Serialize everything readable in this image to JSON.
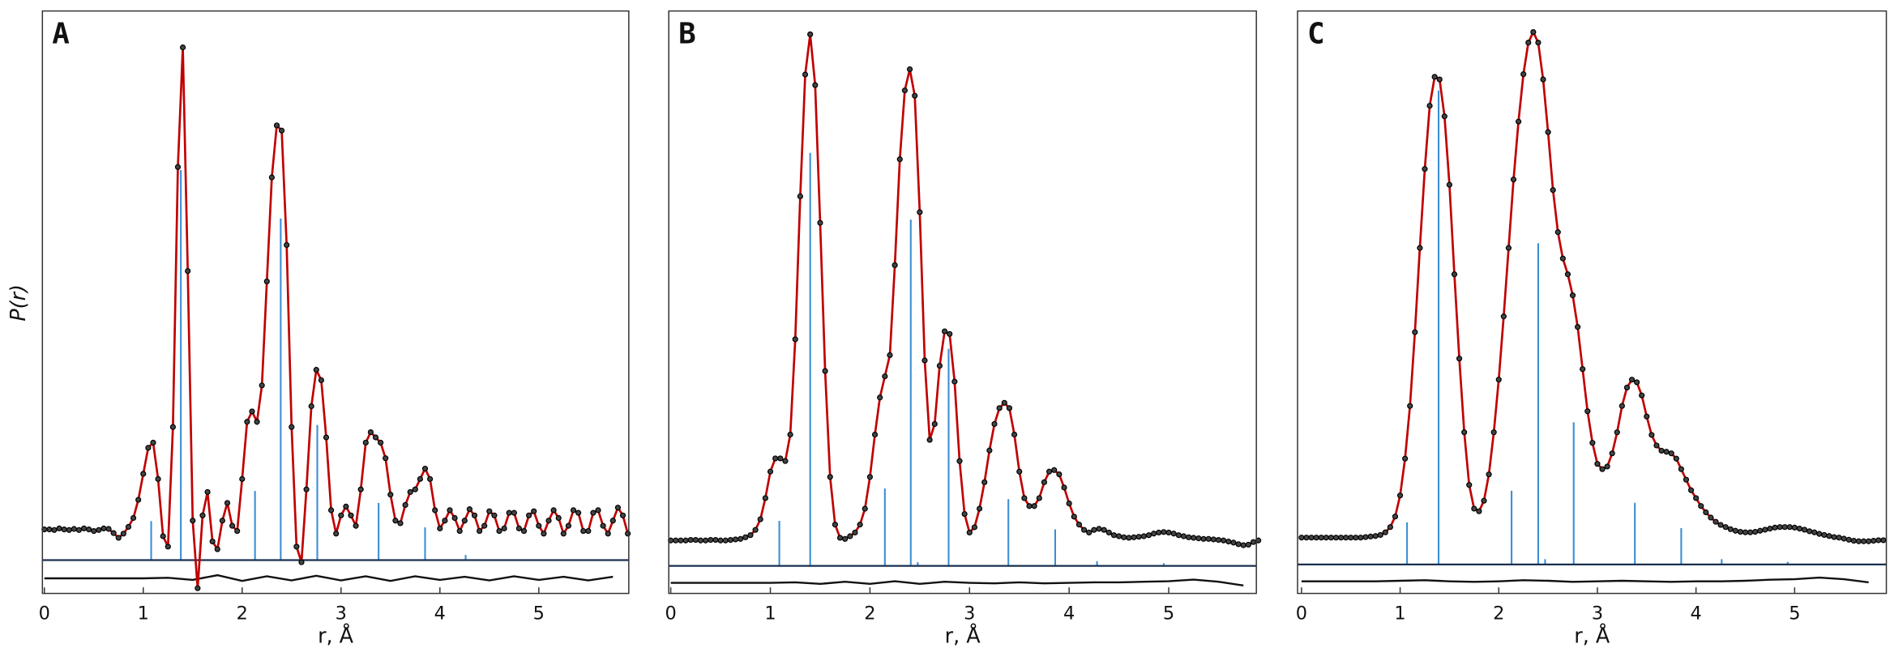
{
  "chart_data": [
    {
      "type": "line",
      "panel_label": "A",
      "xlabel": "r, Å",
      "ylabel": "P(r)",
      "xlim": [
        -0.02,
        5.91
      ],
      "ylim": [
        -12,
        100
      ],
      "xticks": [
        0,
        1,
        2,
        3,
        4,
        5
      ],
      "color": "#c00000",
      "marker_color": "#444444",
      "x": [
        0,
        0.05,
        0.1,
        0.15,
        0.2,
        0.25,
        0.3,
        0.35,
        0.4,
        0.45,
        0.5,
        0.55,
        0.6,
        0.65,
        0.7,
        0.75,
        0.8,
        0.85,
        0.9,
        0.95,
        1,
        1.05,
        1.1,
        1.15,
        1.2,
        1.25,
        1.3,
        1.35,
        1.4,
        1.45,
        1.5,
        1.55,
        1.6,
        1.65,
        1.7,
        1.75,
        1.8,
        1.85,
        1.9,
        1.95,
        2,
        2.05,
        2.1,
        2.15,
        2.2,
        2.25,
        2.3,
        2.35,
        2.4,
        2.45,
        2.5,
        2.55,
        2.6,
        2.65,
        2.7,
        2.75,
        2.8,
        2.85,
        2.9,
        2.95,
        3,
        3.05,
        3.1,
        3.15,
        3.2,
        3.25,
        3.3,
        3.35,
        3.4,
        3.45,
        3.5,
        3.55,
        3.6,
        3.65,
        3.7,
        3.75,
        3.8,
        3.85,
        3.9,
        3.95,
        4,
        4.05,
        4.1,
        4.15,
        4.2,
        4.25,
        4.3,
        4.35,
        4.4,
        4.45,
        4.5,
        4.55,
        4.6,
        4.65,
        4.7,
        4.75,
        4.8,
        4.85,
        4.9,
        4.95,
        5,
        5.05,
        5.1,
        5.15,
        5.2,
        5.25,
        5.3,
        5.35,
        5.4,
        5.45,
        5.5,
        5.55,
        5.6,
        5.65,
        5.7,
        5.75,
        5.8,
        5.85,
        5.9
      ],
      "values": [
        0.3,
        0.3,
        0.2,
        0.5,
        0.3,
        0.2,
        0.4,
        0.2,
        0.5,
        0.3,
        0,
        0.2,
        0.5,
        0.4,
        -0.4,
        -1.3,
        -0.5,
        0.8,
        2.5,
        6,
        11,
        16,
        17,
        10,
        -1,
        -3,
        20,
        70,
        93,
        50,
        2,
        -11,
        3,
        7.5,
        -2,
        -3.5,
        2,
        5.4,
        1,
        0,
        10,
        21,
        23,
        21,
        28,
        48,
        68,
        78,
        77,
        55,
        20,
        -3,
        -6,
        8,
        24,
        31,
        29,
        18,
        4,
        -0.5,
        3,
        4.7,
        3,
        1,
        8,
        17,
        19,
        18,
        17,
        14,
        7,
        2,
        1.5,
        5,
        7.5,
        8,
        10,
        12,
        10,
        4,
        0.5,
        2,
        4,
        2.5,
        0,
        2,
        4.2,
        3,
        0,
        1,
        3.8,
        3,
        0,
        0.5,
        3.5,
        3.5,
        0.5,
        0,
        3,
        3.8,
        1,
        -0.5,
        2,
        4,
        2.5,
        -0.5,
        1,
        4,
        3.5,
        0,
        0,
        3.5,
        4,
        1,
        -0.5,
        2,
        4.5,
        3,
        -0.5
      ],
      "sticks": {
        "color": "#3a8fd4",
        "baseline": -5.6,
        "x": [
          1.08,
          1.38,
          2.13,
          2.39,
          2.76,
          3.38,
          3.85,
          4.26
        ],
        "values": [
          7.5,
          75,
          13.3,
          65.7,
          26,
          11,
          6.3,
          1
        ]
      },
      "difference": {
        "offset": -9.1,
        "x": [
          0,
          0.25,
          0.5,
          0.75,
          1,
          1.25,
          1.5,
          1.75,
          2,
          2.25,
          2.5,
          2.75,
          3,
          3.25,
          3.5,
          3.75,
          4,
          4.25,
          4.5,
          4.75,
          5,
          5.25,
          5.5,
          5.75
        ],
        "values": [
          0,
          0,
          0,
          0,
          0,
          0.1,
          -0.3,
          0.6,
          -0.5,
          0.4,
          -0.4,
          0.5,
          -0.4,
          0.4,
          -0.5,
          0.4,
          -0.3,
          0.3,
          -0.4,
          0.4,
          -0.3,
          0.3,
          -0.4,
          0.3
        ]
      }
    },
    {
      "type": "line",
      "panel_label": "B",
      "xlabel": "r, Å",
      "xlim": [
        -0.02,
        5.88
      ],
      "ylim": [
        -10,
        100
      ],
      "xticks": [
        0,
        1,
        2,
        3,
        4,
        5
      ],
      "color": "#c00000",
      "marker_color": "#444444",
      "x": [
        0,
        0.05,
        0.1,
        0.15,
        0.2,
        0.25,
        0.3,
        0.35,
        0.4,
        0.45,
        0.5,
        0.55,
        0.6,
        0.65,
        0.7,
        0.75,
        0.8,
        0.85,
        0.9,
        0.95,
        1,
        1.05,
        1.1,
        1.15,
        1.2,
        1.25,
        1.3,
        1.35,
        1.4,
        1.45,
        1.5,
        1.55,
        1.6,
        1.65,
        1.7,
        1.75,
        1.8,
        1.85,
        1.9,
        1.95,
        2,
        2.05,
        2.1,
        2.15,
        2.2,
        2.25,
        2.3,
        2.35,
        2.4,
        2.45,
        2.5,
        2.55,
        2.6,
        2.65,
        2.7,
        2.75,
        2.8,
        2.85,
        2.9,
        2.95,
        3,
        3.05,
        3.1,
        3.15,
        3.2,
        3.25,
        3.3,
        3.35,
        3.4,
        3.45,
        3.5,
        3.55,
        3.6,
        3.65,
        3.7,
        3.75,
        3.8,
        3.85,
        3.9,
        3.95,
        4,
        4.05,
        4.1,
        4.15,
        4.2,
        4.25,
        4.3,
        4.35,
        4.4,
        4.45,
        4.5,
        4.55,
        4.6,
        4.65,
        4.7,
        4.75,
        4.8,
        4.85,
        4.9,
        4.95,
        5,
        5.05,
        5.1,
        5.15,
        5.2,
        5.25,
        5.3,
        5.35,
        5.4,
        5.45,
        5.5,
        5.55,
        5.6,
        5.65,
        5.7,
        5.75,
        5.8,
        5.85,
        5.9
      ],
      "values": [
        0,
        0,
        0,
        0,
        0.1,
        0.1,
        0,
        0,
        0.1,
        0.1,
        0,
        0,
        0.1,
        0.2,
        0.3,
        0.6,
        1,
        2,
        4,
        8,
        13,
        15.5,
        15.5,
        15,
        20,
        38,
        65,
        88,
        95.6,
        86,
        60,
        32,
        12,
        3,
        0.5,
        0.3,
        0.8,
        1.5,
        3,
        6,
        12,
        20,
        27,
        31,
        35,
        52,
        72,
        85,
        89,
        84,
        62,
        34,
        19,
        22,
        33,
        39.5,
        39,
        30,
        15,
        5,
        1.5,
        2.5,
        6,
        11,
        17,
        22,
        25,
        26,
        25,
        20,
        13,
        8,
        6.5,
        6.5,
        8,
        11,
        13,
        13.3,
        12.5,
        10,
        7,
        4.5,
        3,
        2,
        1.5,
        2,
        2.2,
        2,
        1.5,
        1,
        0.8,
        0.6,
        0.5,
        0.6,
        0.7,
        0.8,
        1,
        1.3,
        1.5,
        1.6,
        1.5,
        1.3,
        1,
        0.8,
        0.6,
        0.5,
        0.4,
        0.3,
        0.3,
        0.2,
        0.1,
        0,
        -0.2,
        -0.4,
        -0.7,
        -0.9,
        -0.8,
        -0.3,
        0
      ],
      "sticks": {
        "color": "#3a8fd4",
        "baseline": -4.8,
        "x": [
          1.09,
          1.4,
          2.15,
          2.41,
          2.48,
          2.79,
          3.39,
          3.86,
          4.28,
          4.95
        ],
        "values": [
          8.5,
          78,
          14.6,
          65.4,
          0.7,
          41,
          12.6,
          6.9,
          0.9,
          0.5
        ]
      },
      "difference": {
        "offset": -8,
        "x": [
          0,
          0.25,
          0.5,
          0.75,
          1,
          1.25,
          1.5,
          1.75,
          2,
          2.25,
          2.5,
          2.75,
          3,
          3.25,
          3.5,
          3.75,
          4,
          4.25,
          4.5,
          4.75,
          5,
          5.25,
          5.5,
          5.75
        ],
        "values": [
          0,
          0,
          0,
          0,
          0,
          0.1,
          -0.2,
          0.2,
          -0.2,
          0.3,
          -0.2,
          0.2,
          0,
          -0.1,
          0.1,
          -0.1,
          0,
          0.1,
          0.1,
          0.2,
          0.3,
          0.6,
          0.2,
          -0.5
        ]
      }
    },
    {
      "type": "line",
      "panel_label": "C",
      "xlabel": "r, Å",
      "xlim": [
        -0.04,
        5.93
      ],
      "ylim": [
        -10.6,
        100
      ],
      "xticks": [
        0,
        1,
        2,
        3,
        4,
        5
      ],
      "color": "#c00000",
      "marker_color": "#444444",
      "x": [
        0,
        0.05,
        0.1,
        0.15,
        0.2,
        0.25,
        0.3,
        0.35,
        0.4,
        0.45,
        0.5,
        0.55,
        0.6,
        0.65,
        0.7,
        0.75,
        0.8,
        0.85,
        0.9,
        0.95,
        1,
        1.05,
        1.1,
        1.15,
        1.2,
        1.25,
        1.3,
        1.35,
        1.4,
        1.45,
        1.5,
        1.55,
        1.6,
        1.65,
        1.7,
        1.75,
        1.8,
        1.85,
        1.9,
        1.95,
        2,
        2.05,
        2.1,
        2.15,
        2.2,
        2.25,
        2.3,
        2.35,
        2.4,
        2.45,
        2.5,
        2.55,
        2.6,
        2.65,
        2.7,
        2.75,
        2.8,
        2.85,
        2.9,
        2.95,
        3,
        3.05,
        3.1,
        3.15,
        3.2,
        3.25,
        3.3,
        3.35,
        3.4,
        3.45,
        3.5,
        3.55,
        3.6,
        3.65,
        3.7,
        3.75,
        3.8,
        3.85,
        3.9,
        3.95,
        4,
        4.05,
        4.1,
        4.15,
        4.2,
        4.25,
        4.3,
        4.35,
        4.4,
        4.45,
        4.5,
        4.55,
        4.6,
        4.65,
        4.7,
        4.75,
        4.8,
        4.85,
        4.9,
        4.95,
        5,
        5.05,
        5.1,
        5.15,
        5.2,
        5.25,
        5.3,
        5.35,
        5.4,
        5.45,
        5.5,
        5.55,
        5.6,
        5.65,
        5.7,
        5.75,
        5.8,
        5.85,
        5.9
      ],
      "values": [
        0,
        0,
        0,
        0,
        0,
        0,
        0,
        0,
        0,
        0,
        0,
        0,
        0,
        0.1,
        0.2,
        0.3,
        0.5,
        1,
        2,
        4,
        8,
        15,
        25,
        39,
        55,
        70,
        82,
        87.5,
        87,
        80,
        67,
        50,
        34,
        20,
        10,
        5.5,
        5,
        7,
        12,
        20,
        30,
        42,
        55,
        68,
        79,
        88,
        94,
        96,
        94,
        87,
        77,
        66,
        58,
        53,
        50,
        46,
        40,
        32,
        24,
        18,
        14,
        13,
        13.5,
        16,
        20,
        25,
        28.5,
        30,
        29.5,
        27,
        23,
        19.5,
        17.5,
        16.5,
        16.3,
        16,
        15,
        13,
        11,
        9,
        7.5,
        6,
        4.8,
        3.8,
        3,
        2.4,
        2,
        1.6,
        1.3,
        1.1,
        1,
        1,
        1.1,
        1.3,
        1.5,
        1.7,
        1.9,
        2,
        2,
        2,
        1.9,
        1.7,
        1.5,
        1.2,
        1,
        0.7,
        0.5,
        0.3,
        0.1,
        0,
        -0.2,
        -0.4,
        -0.6,
        -0.7,
        -0.7,
        -0.7,
        -0.6,
        -0.5,
        -0.5
      ],
      "sticks": {
        "color": "#3a8fd4",
        "baseline": -5.1,
        "x": [
          1.07,
          1.39,
          2.13,
          2.4,
          2.47,
          2.76,
          3.38,
          3.85,
          4.26,
          4.93
        ],
        "values": [
          8,
          90,
          14,
          61,
          1,
          27,
          11.7,
          6.9,
          1,
          0.5
        ]
      },
      "difference": {
        "offset": -8.3,
        "x": [
          0,
          0.25,
          0.5,
          0.75,
          1,
          1.25,
          1.5,
          1.75,
          2,
          2.25,
          2.5,
          2.75,
          3,
          3.25,
          3.5,
          3.75,
          4,
          4.25,
          4.5,
          4.75,
          5,
          5.25,
          5.5,
          5.75
        ],
        "values": [
          0,
          0,
          0,
          0,
          0.1,
          0.2,
          0,
          -0.1,
          0,
          0.2,
          0.1,
          -0.1,
          0,
          0.1,
          0,
          -0.1,
          0,
          0,
          0.1,
          0.3,
          0.4,
          0.7,
          0.4,
          -0.2
        ]
      }
    }
  ]
}
